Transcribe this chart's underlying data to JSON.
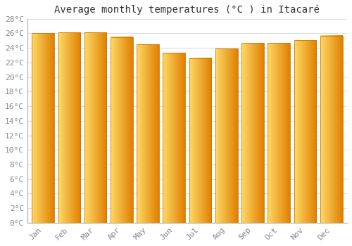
{
  "title": "Average monthly temperatures (°C ) in Itacaré",
  "months": [
    "Jan",
    "Feb",
    "Mar",
    "Apr",
    "May",
    "Jun",
    "Jul",
    "Aug",
    "Sep",
    "Oct",
    "Nov",
    "Dec"
  ],
  "values": [
    26.0,
    26.1,
    26.1,
    25.5,
    24.5,
    23.3,
    22.6,
    23.9,
    24.7,
    24.7,
    25.1,
    25.7
  ],
  "bar_color_left": "#FFD966",
  "bar_color_right": "#E08000",
  "bar_color_edge": "#CC7700",
  "ylim": [
    0,
    28
  ],
  "yticks": [
    0,
    2,
    4,
    6,
    8,
    10,
    12,
    14,
    16,
    18,
    20,
    22,
    24,
    26,
    28
  ],
  "ytick_labels": [
    "0°C",
    "2°C",
    "4°C",
    "6°C",
    "8°C",
    "10°C",
    "12°C",
    "14°C",
    "16°C",
    "18°C",
    "20°C",
    "22°C",
    "24°C",
    "26°C",
    "28°C"
  ],
  "background_color": "#FFFFFF",
  "plot_bg_color": "#FFFFFF",
  "grid_color": "#DDDDDD",
  "title_fontsize": 10,
  "tick_fontsize": 8,
  "bar_width": 0.85
}
